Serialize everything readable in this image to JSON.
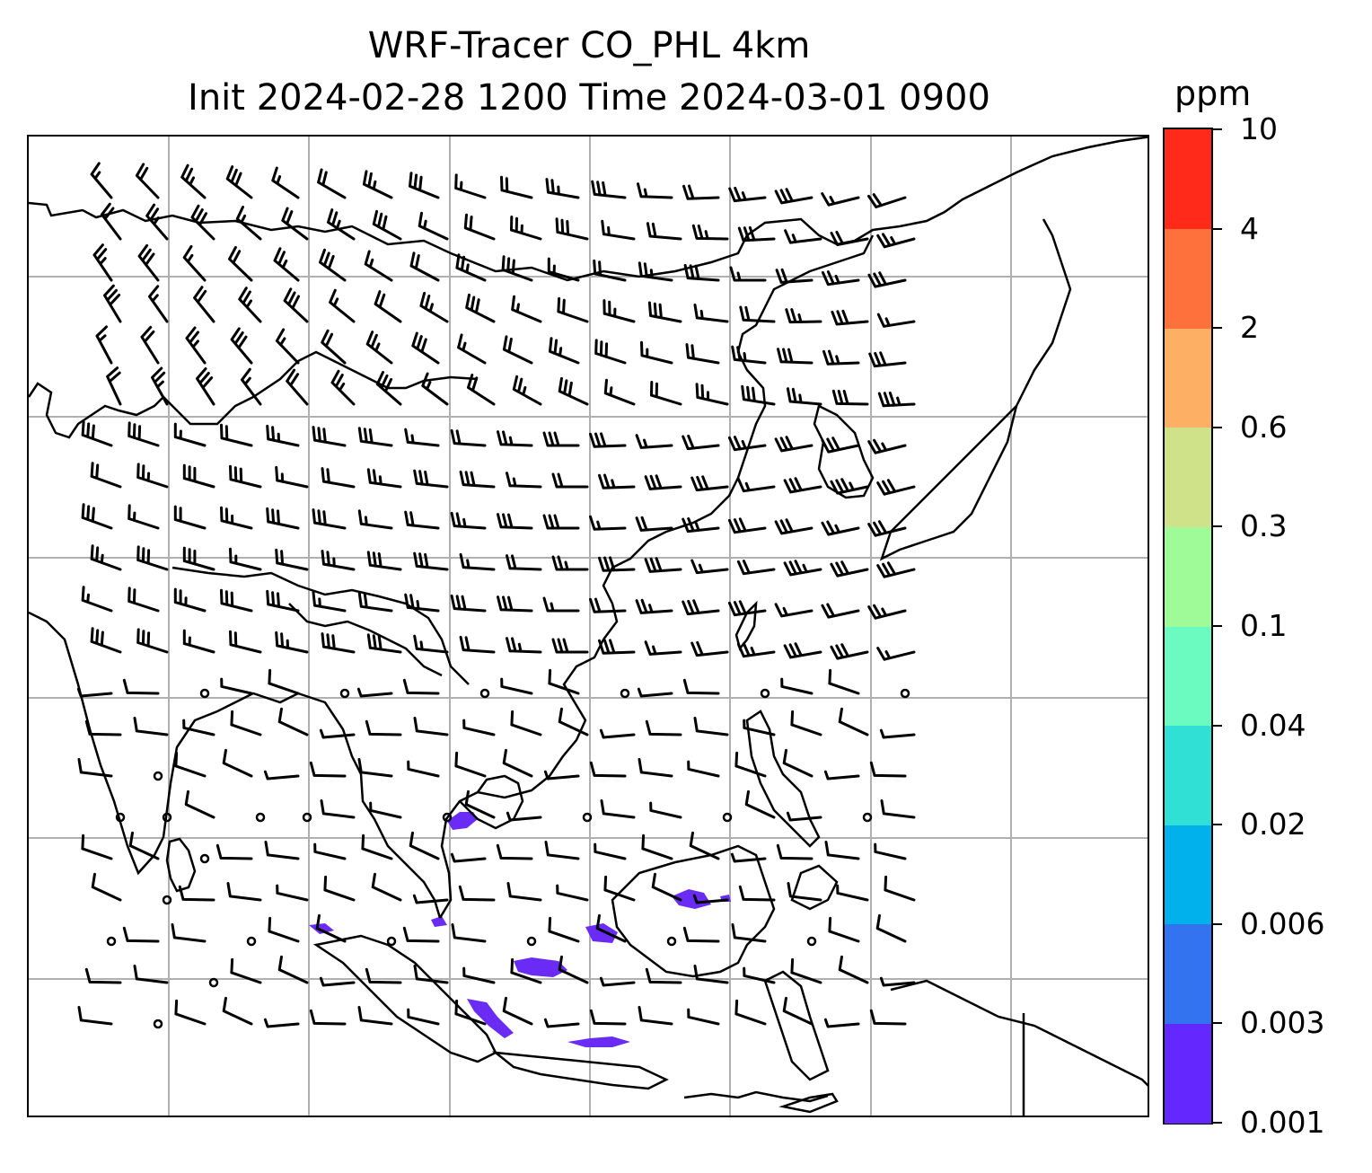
{
  "title": {
    "line1": "WRF-Tracer CO_PHL 4km",
    "line2": "Init 2024-02-28 1200 Time 2024-03-01 0900"
  },
  "colorbar": {
    "unit": "ppm",
    "levels": [
      "0.001",
      "0.003",
      "0.006",
      "0.02",
      "0.04",
      "0.1",
      "0.3",
      "0.6",
      "2",
      "4",
      "10"
    ],
    "colors": [
      "#6428ff",
      "#3473f0",
      "#00b1ec",
      "#30e0d4",
      "#6bfac0",
      "#9efb98",
      "#cfe28a",
      "#fdb063",
      "#ff713c",
      "#ff2a1a"
    ]
  },
  "map": {
    "background": "#ffffff",
    "coastline_color": "#000000",
    "gridline_color": "#b0b0b0",
    "tracer_color": "#6a2cf5",
    "barb_color": "#000000"
  }
}
